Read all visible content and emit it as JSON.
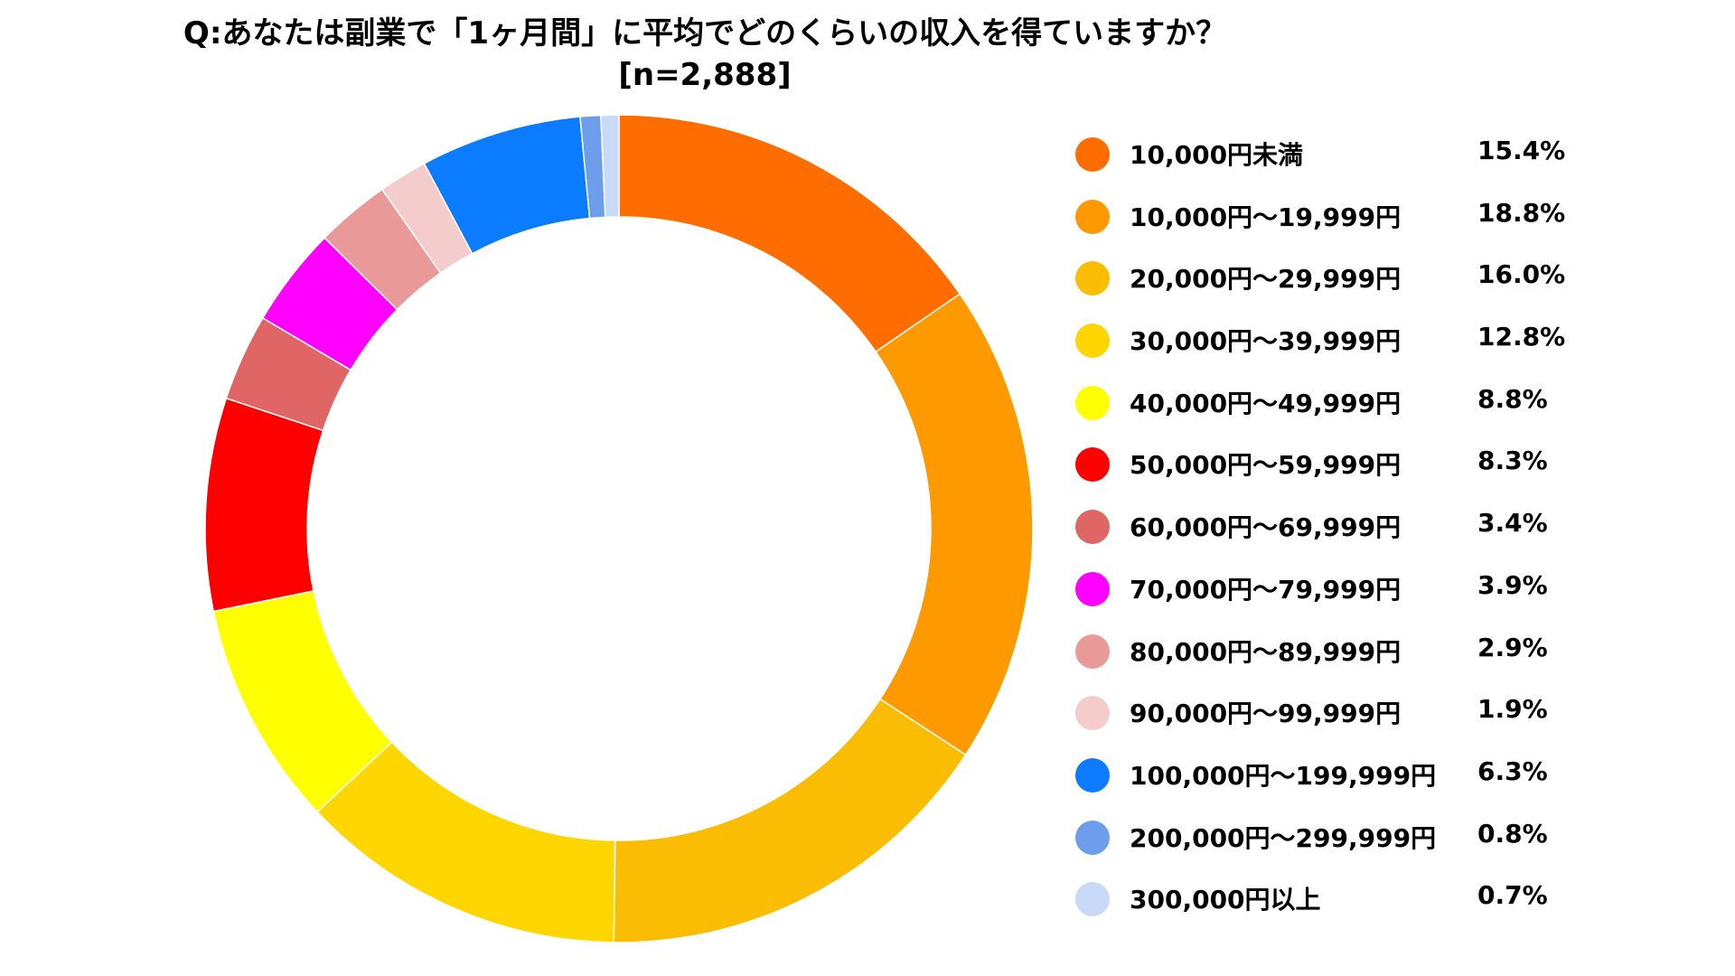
{
  "chart_data": {
    "type": "pie",
    "variant": "donut",
    "title": "Q:あなたは副業で「1ヶ月間」に平均でどのくらいの収入を得ていますか？",
    "subtitle": "[n=2,888]",
    "legend_position": "right",
    "slices": [
      {
        "label": "10,000円未満",
        "value": 15.4,
        "value_label": "15.4%",
        "color": "#FF6D01"
      },
      {
        "label": "10,000円～19,999円",
        "value": 18.8,
        "value_label": "18.8%",
        "color": "#FF9900"
      },
      {
        "label": "20,000円～29,999円",
        "value": 16.0,
        "value_label": "16.0%",
        "color": "#FBBC04"
      },
      {
        "label": "30,000円～39,999円",
        "value": 12.8,
        "value_label": "12.8%",
        "color": "#FFD600"
      },
      {
        "label": "40,000円～49,999円",
        "value": 8.8,
        "value_label": "8.8%",
        "color": "#FFFF00"
      },
      {
        "label": "50,000円～59,999円",
        "value": 8.3,
        "value_label": "8.3%",
        "color": "#FF0000"
      },
      {
        "label": "60,000円～69,999円",
        "value": 3.4,
        "value_label": "3.4%",
        "color": "#E06666"
      },
      {
        "label": "70,000円～79,999円",
        "value": 3.9,
        "value_label": "3.9%",
        "color": "#FF00FF"
      },
      {
        "label": "80,000円～89,999円",
        "value": 2.9,
        "value_label": "2.9%",
        "color": "#EA9999"
      },
      {
        "label": "90,000円～99,999円",
        "value": 1.9,
        "value_label": "1.9%",
        "color": "#F4CCCC"
      },
      {
        "label": "100,000円～199,999円",
        "value": 6.3,
        "value_label": "6.3%",
        "color": "#0B7BFF"
      },
      {
        "label": "200,000円～299,999円",
        "value": 0.8,
        "value_label": "0.8%",
        "color": "#6D9EEB"
      },
      {
        "label": "300,000円以上",
        "value": 0.7,
        "value_label": "0.7%",
        "color": "#C9DAF8"
      }
    ]
  }
}
